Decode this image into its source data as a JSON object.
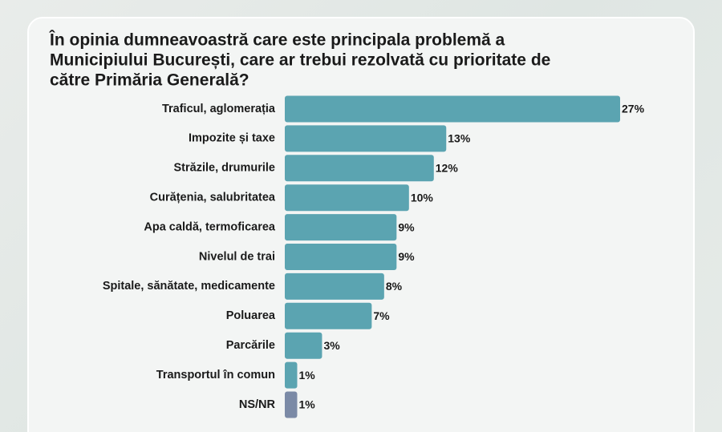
{
  "chart_data": {
    "type": "bar",
    "orientation": "horizontal",
    "title": [
      "În opinia dumneavoastră care este principala problemă a",
      "Municipiului București, care ar trebui rezolvată cu prioritate de",
      "către Primăria Generală?"
    ],
    "categories": [
      "Traficul, aglomerația",
      "Impozite și taxe",
      "Străzile, drumurile",
      "Curățenia, salubritatea",
      "Apa caldă, termoficarea",
      "Nivelul de trai",
      "Spitale, sănătate, medicamente",
      "Poluarea",
      "Parcările",
      "Transportul în comun",
      "NS/NR"
    ],
    "values": [
      27,
      13,
      12,
      10,
      9,
      9,
      8,
      7,
      3,
      1,
      1
    ],
    "value_labels": [
      "27%",
      "13%",
      "12%",
      "10%",
      "9%",
      "9%",
      "8%",
      "7%",
      "3%",
      "1%",
      "1%"
    ],
    "colors": [
      "#5ba4b1",
      "#5ba4b1",
      "#5ba4b1",
      "#5ba4b1",
      "#5ba4b1",
      "#5ba4b1",
      "#5ba4b1",
      "#5ba4b1",
      "#5ba4b1",
      "#5ba4b1",
      "#7b8aa6"
    ]
  }
}
